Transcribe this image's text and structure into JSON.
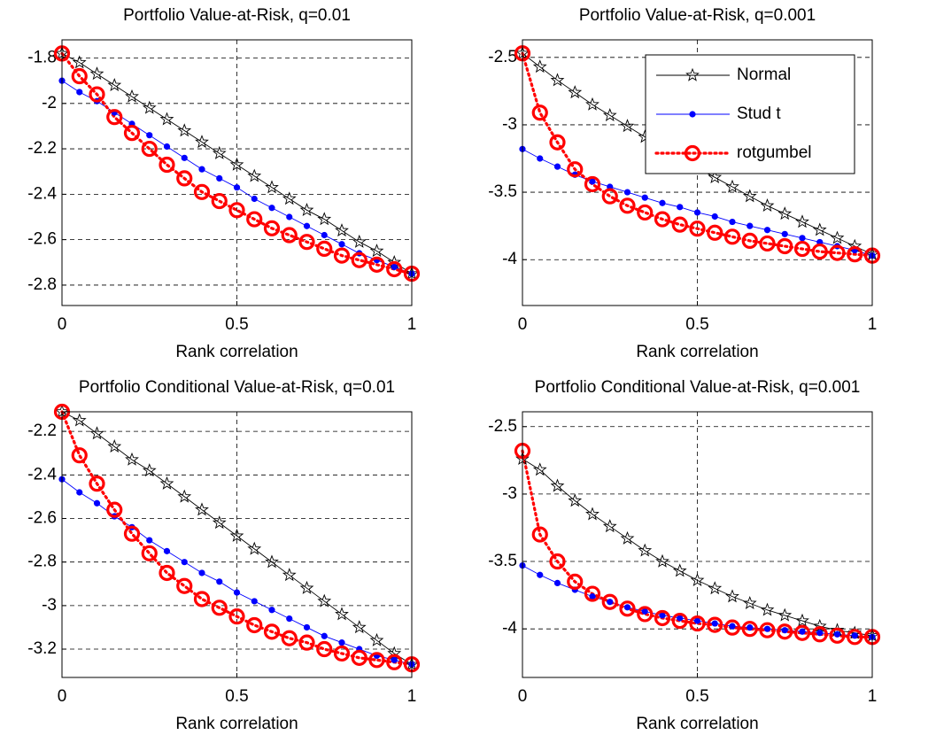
{
  "chart_data": [
    {
      "type": "line",
      "title": "Portfolio Value-at-Risk, q=0.01",
      "x_label": "Rank correlation",
      "x": [
        0,
        0.05,
        0.1,
        0.15,
        0.2,
        0.25,
        0.3,
        0.35,
        0.4,
        0.45,
        0.5,
        0.55,
        0.6,
        0.65,
        0.7,
        0.75,
        0.8,
        0.85,
        0.9,
        0.95,
        1
      ],
      "xlim": [
        0,
        1
      ],
      "xticks": [
        0,
        0.5,
        1
      ],
      "ylim": [
        -2.89,
        -1.72
      ],
      "yticks": [
        -2.8,
        -2.6,
        -2.4,
        -2.2,
        -2,
        -1.8
      ],
      "grid": true,
      "series": [
        {
          "color": "#000000",
          "marker": "star",
          "linestyle": "solid",
          "values": [
            -1.78,
            -1.82,
            -1.87,
            -1.92,
            -1.97,
            -2.02,
            -2.07,
            -2.12,
            -2.17,
            -2.22,
            -2.27,
            -2.32,
            -2.37,
            -2.42,
            -2.47,
            -2.51,
            -2.56,
            -2.61,
            -2.65,
            -2.7,
            -2.75
          ]
        },
        {
          "color": "#0000ff",
          "marker": "dot",
          "linestyle": "solid",
          "values": [
            -1.9,
            -1.95,
            -1.99,
            -2.04,
            -2.09,
            -2.14,
            -2.19,
            -2.24,
            -2.29,
            -2.33,
            -2.37,
            -2.42,
            -2.46,
            -2.5,
            -2.54,
            -2.58,
            -2.62,
            -2.66,
            -2.69,
            -2.72,
            -2.75
          ]
        },
        {
          "color": "#ff0000",
          "marker": "circle",
          "linestyle": "dotted",
          "values": [
            -1.78,
            -1.88,
            -1.96,
            -2.06,
            -2.13,
            -2.2,
            -2.27,
            -2.33,
            -2.39,
            -2.43,
            -2.47,
            -2.51,
            -2.55,
            -2.58,
            -2.61,
            -2.64,
            -2.67,
            -2.69,
            -2.71,
            -2.73,
            -2.75
          ]
        }
      ]
    },
    {
      "type": "line",
      "title": "Portfolio Value-at-Risk, q=0.001",
      "x_label": "Rank correlation",
      "x": [
        0,
        0.05,
        0.1,
        0.15,
        0.2,
        0.25,
        0.3,
        0.35,
        0.4,
        0.45,
        0.5,
        0.55,
        0.6,
        0.65,
        0.7,
        0.75,
        0.8,
        0.85,
        0.9,
        0.95,
        1
      ],
      "xlim": [
        0,
        1
      ],
      "xticks": [
        0,
        0.5,
        1
      ],
      "ylim": [
        -4.34,
        -2.37
      ],
      "yticks": [
        -4,
        -3.5,
        -3,
        -2.5
      ],
      "grid": true,
      "legend": "northeast",
      "series": [
        {
          "name": "Normal",
          "color": "#000000",
          "marker": "star",
          "linestyle": "solid",
          "values": [
            -2.47,
            -2.57,
            -2.67,
            -2.76,
            -2.85,
            -2.93,
            -3.01,
            -3.09,
            -3.17,
            -3.25,
            -3.32,
            -3.39,
            -3.46,
            -3.53,
            -3.6,
            -3.66,
            -3.72,
            -3.78,
            -3.84,
            -3.9,
            -3.96
          ]
        },
        {
          "name": "Stud t",
          "color": "#0000ff",
          "marker": "dot",
          "linestyle": "solid",
          "values": [
            -3.18,
            -3.25,
            -3.31,
            -3.37,
            -3.42,
            -3.46,
            -3.5,
            -3.54,
            -3.58,
            -3.61,
            -3.65,
            -3.68,
            -3.72,
            -3.75,
            -3.78,
            -3.81,
            -3.84,
            -3.87,
            -3.9,
            -3.93,
            -3.97
          ]
        },
        {
          "name": "rotgumbel",
          "color": "#ff0000",
          "marker": "circle",
          "linestyle": "dotted",
          "values": [
            -2.47,
            -2.91,
            -3.13,
            -3.33,
            -3.44,
            -3.53,
            -3.6,
            -3.65,
            -3.7,
            -3.74,
            -3.77,
            -3.8,
            -3.83,
            -3.86,
            -3.88,
            -3.9,
            -3.92,
            -3.94,
            -3.95,
            -3.96,
            -3.97
          ]
        }
      ]
    },
    {
      "type": "line",
      "title": "Portfolio Conditional Value-at-Risk, q=0.01",
      "x_label": "Rank correlation",
      "x": [
        0,
        0.05,
        0.1,
        0.15,
        0.2,
        0.25,
        0.3,
        0.35,
        0.4,
        0.45,
        0.5,
        0.55,
        0.6,
        0.65,
        0.7,
        0.75,
        0.8,
        0.85,
        0.9,
        0.95,
        1
      ],
      "xlim": [
        0,
        1
      ],
      "xticks": [
        0,
        0.5,
        1
      ],
      "ylim": [
        -3.33,
        -2.11
      ],
      "yticks": [
        -3.2,
        -3,
        -2.8,
        -2.6,
        -2.4,
        -2.2
      ],
      "grid": true,
      "series": [
        {
          "color": "#000000",
          "marker": "star",
          "linestyle": "solid",
          "values": [
            -2.11,
            -2.15,
            -2.21,
            -2.27,
            -2.33,
            -2.38,
            -2.44,
            -2.5,
            -2.56,
            -2.62,
            -2.68,
            -2.74,
            -2.8,
            -2.86,
            -2.92,
            -2.98,
            -3.04,
            -3.1,
            -3.16,
            -3.22,
            -3.27
          ]
        },
        {
          "color": "#0000ff",
          "marker": "dot",
          "linestyle": "solid",
          "values": [
            -2.42,
            -2.48,
            -2.53,
            -2.59,
            -2.64,
            -2.7,
            -2.75,
            -2.8,
            -2.85,
            -2.89,
            -2.94,
            -2.98,
            -3.02,
            -3.06,
            -3.1,
            -3.14,
            -3.17,
            -3.2,
            -3.23,
            -3.25,
            -3.27
          ]
        },
        {
          "color": "#ff0000",
          "marker": "circle",
          "linestyle": "dotted",
          "values": [
            -2.11,
            -2.31,
            -2.44,
            -2.56,
            -2.67,
            -2.76,
            -2.85,
            -2.91,
            -2.97,
            -3.01,
            -3.05,
            -3.09,
            -3.12,
            -3.15,
            -3.17,
            -3.2,
            -3.22,
            -3.24,
            -3.25,
            -3.26,
            -3.27
          ]
        }
      ]
    },
    {
      "type": "line",
      "title": "Portfolio Conditional Value-at-Risk, q=0.001",
      "x_label": "Rank correlation",
      "x": [
        0,
        0.05,
        0.1,
        0.15,
        0.2,
        0.25,
        0.3,
        0.35,
        0.4,
        0.45,
        0.5,
        0.55,
        0.6,
        0.65,
        0.7,
        0.75,
        0.8,
        0.85,
        0.9,
        0.95,
        1
      ],
      "xlim": [
        0,
        1
      ],
      "xticks": [
        0,
        0.5,
        1
      ],
      "ylim": [
        -4.36,
        -2.39
      ],
      "yticks": [
        -4,
        -3.5,
        -3,
        -2.5
      ],
      "grid": true,
      "series": [
        {
          "color": "#000000",
          "marker": "star",
          "linestyle": "solid",
          "values": [
            -2.74,
            -2.82,
            -2.94,
            -3.05,
            -3.15,
            -3.24,
            -3.33,
            -3.42,
            -3.5,
            -3.57,
            -3.64,
            -3.7,
            -3.76,
            -3.81,
            -3.86,
            -3.9,
            -3.94,
            -3.98,
            -4.01,
            -4.03,
            -4.05
          ]
        },
        {
          "color": "#0000ff",
          "marker": "dot",
          "linestyle": "solid",
          "values": [
            -3.53,
            -3.6,
            -3.66,
            -3.71,
            -3.76,
            -3.8,
            -3.84,
            -3.87,
            -3.9,
            -3.92,
            -3.94,
            -3.96,
            -3.98,
            -3.99,
            -4.0,
            -4.01,
            -4.02,
            -4.03,
            -4.04,
            -4.05,
            -4.06
          ]
        },
        {
          "color": "#ff0000",
          "marker": "circle",
          "linestyle": "dotted",
          "values": [
            -2.68,
            -3.3,
            -3.5,
            -3.65,
            -3.74,
            -3.8,
            -3.85,
            -3.89,
            -3.92,
            -3.94,
            -3.96,
            -3.97,
            -3.99,
            -4.0,
            -4.01,
            -4.02,
            -4.03,
            -4.04,
            -4.05,
            -4.06,
            -4.06
          ]
        }
      ]
    }
  ]
}
